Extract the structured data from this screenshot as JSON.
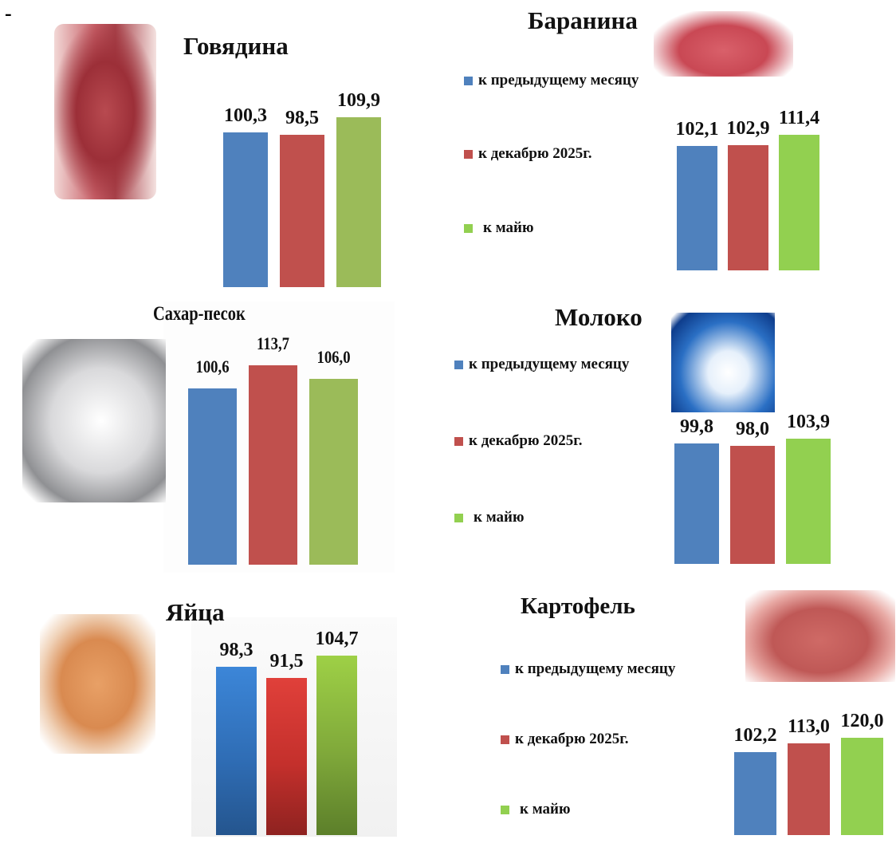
{
  "page": {
    "dash": "-"
  },
  "legend": {
    "prev_month": "к предыдущему месяцу",
    "december": "к  декабрю 2025г.",
    "may": "к майю"
  },
  "colors": {
    "blue": "#4f81bd",
    "red": "#c0504d",
    "green": "#9bbb59",
    "green_bright": "#92d050"
  },
  "icons": {
    "beef": "beef-carcass-photo",
    "lamb": "lamb-rack-photo",
    "sugar": "sugar-spoon-photo",
    "milk": "milk-splash-photo",
    "eggs": "eggs-tray-photo",
    "potato": "potatoes-photo"
  },
  "chart_data": [
    {
      "type": "bar",
      "title": "Говядина",
      "categories": [
        "к предыдущему месяцу",
        "к  декабрю 2025г.",
        "к майю"
      ],
      "values": [
        100.3,
        98.5,
        109.9
      ],
      "labels": [
        "100,3",
        "98,5",
        "109,9"
      ],
      "legend": "none"
    },
    {
      "type": "bar",
      "title": "Баранина",
      "categories": [
        "к предыдущему месяцу",
        "к  декабрю 2025г.",
        "к майю"
      ],
      "values": [
        102.1,
        102.9,
        111.4
      ],
      "labels": [
        "102,1",
        "102,9",
        "111,4"
      ],
      "legend": "left"
    },
    {
      "type": "bar",
      "title": "Сахар-песок",
      "categories": [
        "к предыдущему месяцу",
        "к  декабрю 2025г.",
        "к майю"
      ],
      "values": [
        100.6,
        113.7,
        106.0
      ],
      "labels": [
        "100,6",
        "113,7",
        "106,0"
      ],
      "legend": "none"
    },
    {
      "type": "bar",
      "title": "Молоко",
      "categories": [
        "к предыдущему месяцу",
        "к  декабрю 2025г.",
        "к майю"
      ],
      "values": [
        99.8,
        98.0,
        103.9
      ],
      "labels": [
        "99,8",
        "98,0",
        "103,9"
      ],
      "legend": "left"
    },
    {
      "type": "bar",
      "title": "Яйца",
      "categories": [
        "к предыдущему месяцу",
        "к  декабрю 2025г.",
        "к майю"
      ],
      "values": [
        98.3,
        91.5,
        104.7
      ],
      "labels": [
        "98,3",
        "91,5",
        "104,7"
      ],
      "legend": "none"
    },
    {
      "type": "bar",
      "title": "Картофель",
      "categories": [
        "к предыдущему месяцу",
        "к  декабрю 2025г.",
        "к майю"
      ],
      "values": [
        102.2,
        113.0,
        120.0
      ],
      "labels": [
        "102,2",
        "113,0",
        "120,0"
      ],
      "legend": "left"
    }
  ]
}
